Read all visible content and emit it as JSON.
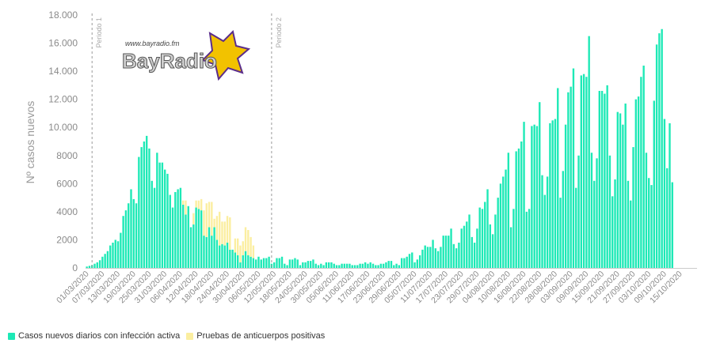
{
  "colors": {
    "active": "#1de9b6",
    "antibody": "#fbeea0",
    "axis": "#cccccc",
    "text": "#8a8a8a"
  },
  "logo": {
    "url_text": "www.bayradio.fm",
    "name": "BayRadio"
  },
  "chart_data": {
    "type": "bar",
    "stacked": true,
    "ylabel": "Nº casos nuevos",
    "ylim": [
      0,
      18000
    ],
    "yticks": [
      {
        "value": 0,
        "label": "0"
      },
      {
        "value": 2000,
        "label": "2000"
      },
      {
        "value": 4000,
        "label": "4000"
      },
      {
        "value": 6000,
        "label": "6000"
      },
      {
        "value": 8000,
        "label": "8000"
      },
      {
        "value": 10000,
        "label": "10.000"
      },
      {
        "value": 12000,
        "label": "12.000"
      },
      {
        "value": 14000,
        "label": "14.000"
      },
      {
        "value": 16000,
        "label": "16.000"
      },
      {
        "value": 18000,
        "label": "18.000"
      }
    ],
    "x_start": "2020-03-01",
    "x_end": "2020-10-21",
    "xtick_labels": [
      "01/03/2020",
      "07/03/2020",
      "13/03/2020",
      "19/03/2020",
      "25/03/2020",
      "31/03/2020",
      "06/04/2020",
      "12/04/2020",
      "18/04/2020",
      "24/04/2020",
      "30/04/2020",
      "06/05/2020",
      "12/05/2020",
      "18/05/2020",
      "24/05/2020",
      "30/05/2020",
      "05/06/2020",
      "11/06/2020",
      "17/06/2020",
      "23/06/2020",
      "29/06/2020",
      "05/07/2020",
      "11/07/2020",
      "17/07/2020",
      "23/07/2020",
      "29/07/2020",
      "04/08/2020",
      "10/08/2020",
      "16/08/2020",
      "22/08/2020",
      "28/08/2020",
      "03/09/2020",
      "09/09/2020",
      "15/09/2020",
      "21/09/2020",
      "27/09/2020",
      "03/10/2020",
      "09/10/2020",
      "15/10/2020"
    ],
    "periods": [
      {
        "date": "2020-03-03",
        "label": "Periodo 1"
      },
      {
        "date": "2020-05-11",
        "label": "Periodo 2"
      }
    ],
    "series": [
      {
        "name": "Casos nuevos diarios con infección activa",
        "values": [
          100,
          150,
          200,
          300,
          400,
          550,
          800,
          1000,
          1200,
          1600,
          1800,
          2000,
          1900,
          2500,
          3700,
          4100,
          4600,
          5600,
          4900,
          4600,
          7900,
          8600,
          9000,
          9400,
          8500,
          6200,
          5700,
          8200,
          7500,
          7500,
          7000,
          6700,
          5200,
          4300,
          5400,
          5600,
          5700,
          4500,
          3800,
          4400,
          2900,
          3100,
          4300,
          4200,
          4100,
          2300,
          2200,
          2900,
          2300,
          2900,
          2000,
          1600,
          1700,
          1600,
          1800,
          1300,
          1300,
          1100,
          900,
          400,
          900,
          1200,
          900,
          800,
          700,
          600,
          800,
          600,
          700,
          700,
          800,
          300,
          400,
          700,
          700,
          800,
          300,
          200,
          600,
          600,
          700,
          600,
          200,
          400,
          400,
          500,
          500,
          600,
          300,
          200,
          300,
          200,
          400,
          400,
          400,
          300,
          200,
          200,
          300,
          300,
          300,
          300,
          200,
          200,
          200,
          300,
          300,
          400,
          300,
          400,
          300,
          200,
          200,
          300,
          300,
          400,
          500,
          500,
          200,
          300,
          200,
          700,
          700,
          800,
          1000,
          1100,
          400,
          600,
          900,
          1300,
          1600,
          1500,
          1500,
          2000,
          1400,
          1200,
          1500,
          2300,
          2300,
          2300,
          2800,
          1700,
          1400,
          1800,
          2800,
          3000,
          3300,
          3800,
          2200,
          1800,
          2800,
          4300,
          4200,
          4700,
          5600,
          3100,
          2400,
          3800,
          5000,
          6000,
          6500,
          7000,
          8200,
          2900,
          4200,
          8300,
          8500,
          9000,
          10400,
          4000,
          4200,
          10100,
          10200,
          10100,
          11800,
          6600,
          5200,
          6500,
          10300,
          10500,
          10600,
          12800,
          5000,
          6900,
          10200,
          12500,
          12900,
          14200,
          5700,
          8000,
          13700,
          13800,
          13600,
          16500,
          8200,
          6200,
          7800,
          12600,
          12600,
          12400,
          13000,
          8000,
          5100,
          6300,
          11100,
          11000,
          10200,
          11700,
          6200,
          4800,
          8600,
          12000,
          12200,
          13600,
          14400,
          8200,
          6400,
          5900,
          11900,
          15900,
          16700,
          17000,
          10600,
          7100,
          10300,
          6100
        ]
      },
      {
        "name": "Pruebas de anticuerpos positivas",
        "values": [
          0,
          0,
          0,
          0,
          0,
          0,
          0,
          0,
          0,
          0,
          0,
          0,
          0,
          0,
          0,
          0,
          0,
          0,
          0,
          0,
          0,
          0,
          0,
          0,
          0,
          0,
          0,
          0,
          0,
          0,
          0,
          0,
          0,
          0,
          0,
          0,
          0,
          300,
          1000,
          0,
          0,
          800,
          500,
          600,
          800,
          1800,
          2400,
          1800,
          2400,
          600,
          1700,
          2400,
          1600,
          1700,
          1900,
          2300,
          0,
          1000,
          1200,
          1200,
          1000,
          1700,
          1800,
          1400,
          900,
          0,
          0,
          0,
          0,
          0,
          0,
          0,
          0,
          0,
          0,
          0,
          0,
          0,
          0,
          0,
          0,
          0,
          0,
          0,
          0,
          0,
          0,
          0,
          0,
          0,
          0,
          0,
          0,
          0,
          0,
          0,
          0,
          0,
          0,
          0,
          0,
          0,
          0,
          0,
          0,
          0,
          0,
          0,
          0,
          0,
          0,
          0,
          0,
          0,
          0,
          0,
          0,
          0,
          0,
          0,
          0,
          0,
          0,
          0,
          0,
          0,
          0,
          0,
          0,
          0,
          0,
          0,
          0,
          0,
          0,
          0,
          0,
          0,
          0,
          0,
          0,
          0,
          0,
          0,
          0,
          0,
          0,
          0,
          0,
          0,
          0,
          0,
          0,
          0,
          0,
          0,
          0,
          0,
          0,
          0,
          0,
          0,
          0,
          0,
          0,
          0,
          0,
          0,
          0,
          0,
          0,
          0,
          0,
          0,
          0,
          0,
          0,
          0,
          0,
          0,
          0,
          0,
          0,
          0,
          0,
          0,
          0,
          0,
          0,
          0,
          0,
          0,
          0,
          0,
          0,
          0,
          0,
          0,
          0,
          0,
          0,
          0,
          0,
          0,
          0,
          0,
          0,
          0,
          0,
          0,
          0,
          0,
          0,
          0,
          0,
          0,
          0,
          0,
          0,
          0,
          0,
          0,
          0,
          0,
          0,
          0,
          0,
          0,
          0,
          0,
          0,
          0,
          0,
          0,
          0,
          0,
          0,
          0,
          0,
          0,
          0,
          0,
          0
        ]
      }
    ]
  }
}
